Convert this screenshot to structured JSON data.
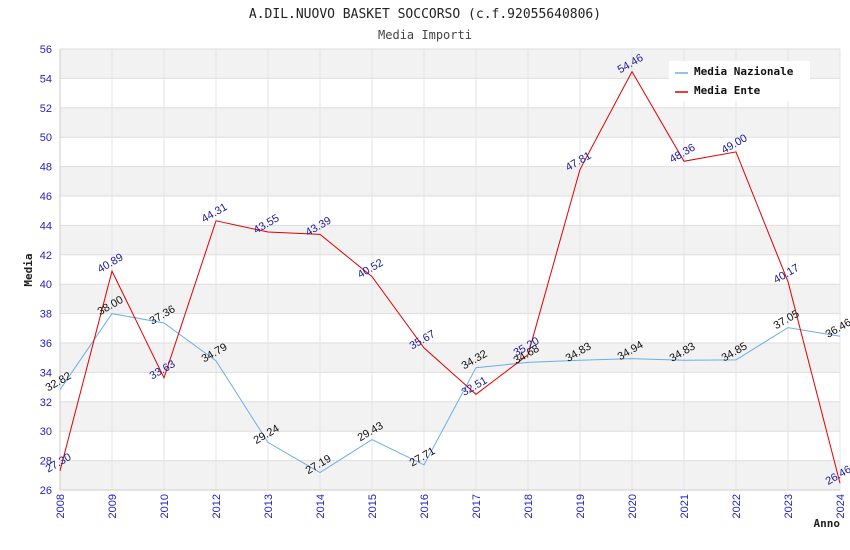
{
  "chart_data": {
    "type": "line",
    "title": "A.DIL.NUOVO BASKET SOCCORSO (c.f.92055640806)",
    "subtitle": "Media Importi",
    "xlabel": "Anno",
    "ylabel": "Media",
    "categories": [
      "2008",
      "2009",
      "2010",
      "2012",
      "2013",
      "2014",
      "2015",
      "2016",
      "2017",
      "2018",
      "2019",
      "2020",
      "2021",
      "2022",
      "2023",
      "2024"
    ],
    "ylim": [
      26,
      56
    ],
    "yticks": [
      26,
      28,
      30,
      32,
      34,
      36,
      38,
      40,
      42,
      44,
      46,
      48,
      50,
      52,
      54,
      56
    ],
    "grid": true,
    "legend_position": "top-right",
    "series": [
      {
        "name": "Media Nazionale",
        "color": "#6aaee8",
        "values": [
          32.82,
          38.0,
          37.36,
          34.79,
          29.24,
          27.19,
          29.43,
          27.71,
          34.32,
          34.68,
          34.83,
          34.94,
          34.83,
          34.85,
          37.05,
          36.46
        ],
        "labels": [
          "32.82",
          "38.00",
          "37.36",
          "34.79",
          "29.24",
          "27.19",
          "29.43",
          "27.71",
          "34.32",
          "34.68",
          "34.83",
          "34.94",
          "34.83",
          "34.85",
          "37.05",
          "36.46"
        ]
      },
      {
        "name": "Media Ente",
        "color": "#e00000",
        "values": [
          27.3,
          40.89,
          33.63,
          44.31,
          43.55,
          43.39,
          40.52,
          35.67,
          32.51,
          35.2,
          47.81,
          54.46,
          48.36,
          49.0,
          40.17,
          26.46
        ],
        "labels": [
          "27.30",
          "40.89",
          "33.63",
          "44.31",
          "43.55",
          "43.39",
          "40.52",
          "35.67",
          "32.51",
          "35.20",
          "47.81",
          "54.46",
          "48.36",
          "49.00",
          "40.17",
          "26.46"
        ]
      }
    ]
  }
}
